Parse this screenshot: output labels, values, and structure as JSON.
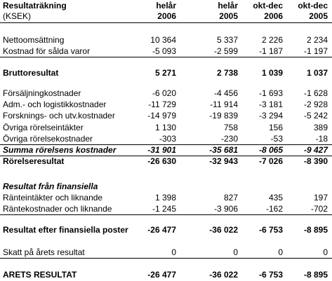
{
  "header": {
    "title": "Resultaträkning",
    "unit": "(KSEK)",
    "columns": [
      {
        "period": "helår",
        "year": "2006"
      },
      {
        "period": "helår",
        "year": "2005"
      },
      {
        "period": "okt-dec",
        "year": "2006"
      },
      {
        "period": "okt-dec",
        "year": "2005"
      }
    ]
  },
  "table": {
    "rows": [
      {
        "label": "Nettoomsättning",
        "values": [
          "10 364",
          "5 337",
          "2 226",
          "2 234"
        ]
      },
      {
        "label": "Kostnad för sålda varor",
        "values": [
          "-5 093",
          "-2 599",
          "-1 187",
          "-1 197"
        ]
      },
      {
        "label": "Bruttoresultat",
        "values": [
          "5 271",
          "2 738",
          "1 039",
          "1 037"
        ]
      },
      {
        "label": "Försäljningkostnader",
        "values": [
          "-6 020",
          "-4 456",
          "-1 693",
          "-1 628"
        ]
      },
      {
        "label": "Adm.- och logistikkostnader",
        "values": [
          "-11 729",
          "-11 914",
          "-3 181",
          "-2 928"
        ]
      },
      {
        "label": "Forsknings- och utv.kostnader",
        "values": [
          "-14 979",
          "-19 839",
          "-3 294",
          "-5 242"
        ]
      },
      {
        "label": "Övriga rörelseintäkter",
        "values": [
          "1 130",
          "758",
          "156",
          "389"
        ]
      },
      {
        "label": "Övriga rörelsekostnader",
        "values": [
          "-303",
          "-230",
          "-53",
          "-18"
        ]
      },
      {
        "label": "Summa rörelsens kostnader",
        "values": [
          "-31 901",
          "-35 681",
          "-8 065",
          "-9 427"
        ]
      },
      {
        "label": "Rörelseresultat",
        "values": [
          "-26 630",
          "-32 943",
          "-7 026",
          "-8 390"
        ]
      },
      {
        "label": "Resultat från finansiella"
      },
      {
        "label": "Ränteintäkter och liknande",
        "values": [
          "1 398",
          "827",
          "435",
          "197"
        ]
      },
      {
        "label": "Räntekostnader och liknande",
        "values": [
          "-1 245",
          "-3 906",
          "-162",
          "-702"
        ]
      },
      {
        "label": "Resultat efter finansiella poster",
        "values": [
          "-26 477",
          "-36 022",
          "-6 753",
          "-8 895"
        ]
      },
      {
        "label": "Skatt på årets resultat",
        "values": [
          "0",
          "0",
          "0",
          "0"
        ]
      },
      {
        "label": "ARETS RESULTAT",
        "values": [
          "-26 477",
          "-36 022",
          "-6 753",
          "-8 895"
        ]
      }
    ]
  }
}
